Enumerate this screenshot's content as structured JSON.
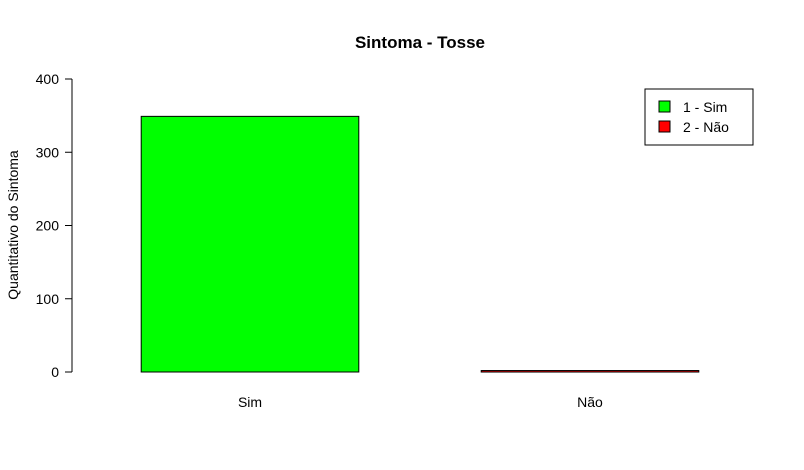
{
  "chart_data": {
    "type": "bar",
    "title": "Sintoma - Tosse",
    "xlabel": "",
    "ylabel": "Quantitativo do Sintoma",
    "categories": [
      "Sim",
      "Não"
    ],
    "values": [
      349,
      2
    ],
    "colors": [
      "#00ff00",
      "#ff0000"
    ],
    "ylim": [
      0,
      400
    ],
    "yticks": [
      0,
      100,
      200,
      300,
      400
    ],
    "grid": false,
    "legend": {
      "position": "top-right",
      "entries": [
        {
          "label": "1 - Sim",
          "color": "#00ff00"
        },
        {
          "label": "2 - Não",
          "color": "#ff0000"
        }
      ]
    }
  }
}
